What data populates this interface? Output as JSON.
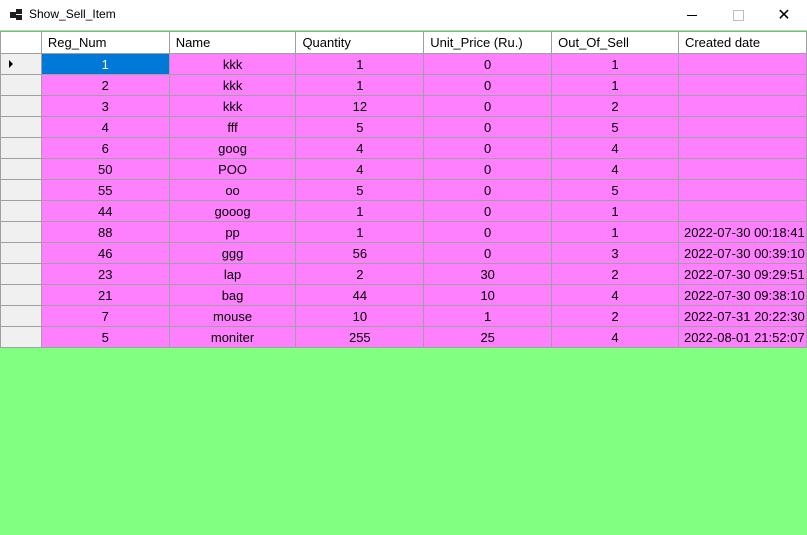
{
  "window": {
    "title": "Show_Sell_Item"
  },
  "icons": {
    "app": "app-window-icon",
    "minimize": "minimize-icon",
    "maximize": "maximize-icon",
    "close": "close-icon"
  },
  "colors": {
    "row_background": "#ff80ff",
    "grid_background": "#80ff80",
    "selection": "#0078d7"
  },
  "table": {
    "columns": [
      "Reg_Num",
      "Name",
      "Quantity",
      "Unit_Price (Ru.)",
      "Out_Of_Sell",
      "Created date"
    ],
    "selected_row": 0,
    "rows": [
      [
        "1",
        "kkk",
        "1",
        "0",
        "1",
        ""
      ],
      [
        "2",
        "kkk",
        "1",
        "0",
        "1",
        ""
      ],
      [
        "3",
        "kkk",
        "12",
        "0",
        "2",
        ""
      ],
      [
        "4",
        "fff",
        "5",
        "0",
        "5",
        ""
      ],
      [
        "6",
        "goog",
        "4",
        "0",
        "4",
        ""
      ],
      [
        "50",
        "POO",
        "4",
        "0",
        "4",
        ""
      ],
      [
        "55",
        "oo",
        "5",
        "0",
        "5",
        ""
      ],
      [
        "44",
        "gooog",
        "1",
        "0",
        "1",
        ""
      ],
      [
        "88",
        "pp",
        "1",
        "0",
        "1",
        "2022-07-30 00:18:41"
      ],
      [
        "46",
        "ggg",
        "56",
        "0",
        "3",
        "2022-07-30 00:39:10"
      ],
      [
        "23",
        "lap",
        "2",
        "30",
        "2",
        "2022-07-30 09:29:51"
      ],
      [
        "21",
        "bag",
        "44",
        "10",
        "4",
        "2022-07-30 09:38:10"
      ],
      [
        "7",
        "mouse",
        "10",
        "1",
        "2",
        "2022-07-31 20:22:30"
      ],
      [
        "5",
        "moniter",
        "255",
        "25",
        "4",
        "2022-08-01 21:52:07"
      ]
    ]
  }
}
